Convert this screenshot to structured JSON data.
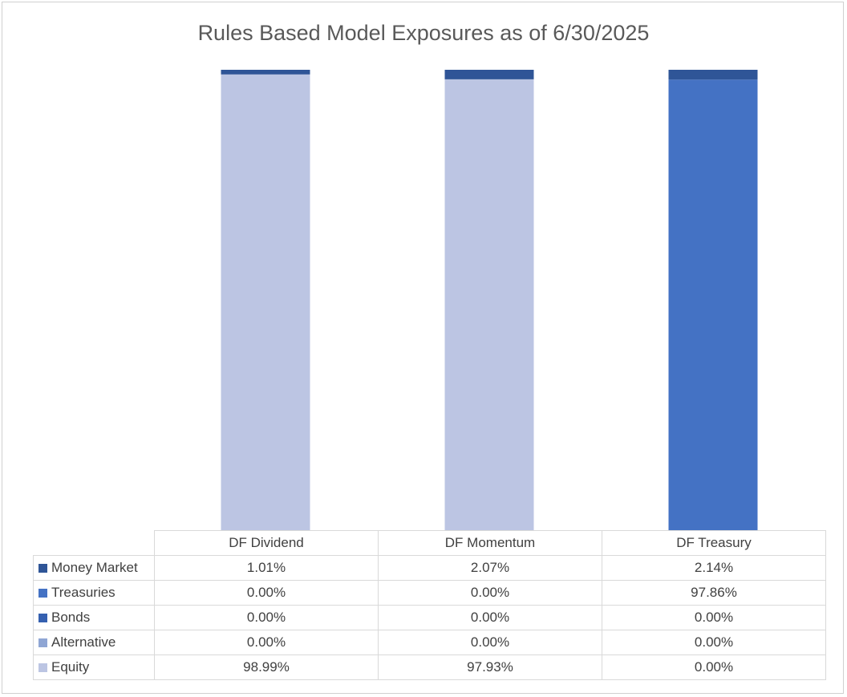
{
  "chart_data": {
    "type": "bar",
    "stacked": true,
    "title": "Rules Based Model Exposures as of 6/30/2025",
    "categories": [
      "DF Dividend",
      "DF Momentum",
      "DF Treasury"
    ],
    "ylim": [
      0,
      100
    ],
    "grid": false,
    "legend": "data-table-left",
    "series": [
      {
        "name": "Equity",
        "color": "#bcc5e3",
        "values": [
          98.99,
          97.93,
          0.0
        ],
        "labels": [
          "98.99%",
          "97.93%",
          "0.00%"
        ]
      },
      {
        "name": "Alternative",
        "color": "#8fa6d4",
        "values": [
          0.0,
          0.0,
          0.0
        ],
        "labels": [
          "0.00%",
          "0.00%",
          "0.00%"
        ]
      },
      {
        "name": "Bonds",
        "color": "#3560b0",
        "values": [
          0.0,
          0.0,
          0.0
        ],
        "labels": [
          "0.00%",
          "0.00%",
          "0.00%"
        ]
      },
      {
        "name": "Treasuries",
        "color": "#4472c4",
        "values": [
          0.0,
          0.0,
          97.86
        ],
        "labels": [
          "0.00%",
          "0.00%",
          "97.86%"
        ]
      },
      {
        "name": "Money Market",
        "color": "#2f5597",
        "values": [
          1.01,
          2.07,
          2.14
        ],
        "labels": [
          "1.01%",
          "2.07%",
          "2.14%"
        ]
      }
    ],
    "table_order": [
      "Money Market",
      "Treasuries",
      "Bonds",
      "Alternative",
      "Equity"
    ]
  }
}
